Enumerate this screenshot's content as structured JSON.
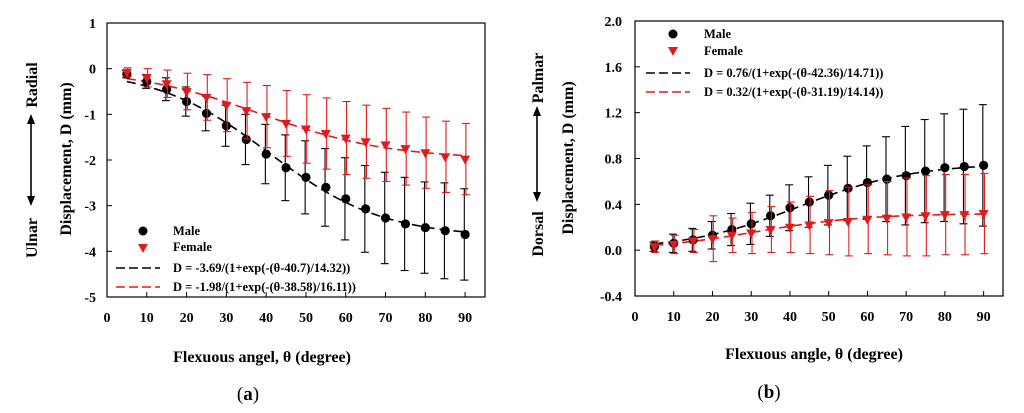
{
  "chart_data": [
    {
      "type": "scatter",
      "panel_label": "a",
      "caption_open": "(",
      "caption_close": ")",
      "xlabel": "Flexuous angel, θ (degree)",
      "ylabel": "Displacement, D (mm)",
      "side_label_top": "Radial",
      "side_label_bottom": "Ulnar",
      "xlim": [
        0,
        95
      ],
      "ylim": [
        -5,
        1
      ],
      "xticks": [
        "0",
        "10",
        "20",
        "30",
        "40",
        "50",
        "60",
        "70",
        "80",
        "90"
      ],
      "yticks": [
        "-5",
        "-4",
        "-3",
        "-2",
        "-1",
        "0",
        "1"
      ],
      "x": [
        5,
        10,
        15,
        20,
        25,
        30,
        35,
        40,
        45,
        50,
        55,
        60,
        65,
        70,
        75,
        80,
        85,
        90
      ],
      "series": [
        {
          "name": "Male",
          "marker": "circle",
          "color": "#000000",
          "values": [
            -0.12,
            -0.28,
            -0.45,
            -0.72,
            -0.98,
            -1.25,
            -1.55,
            -1.87,
            -2.17,
            -2.38,
            -2.6,
            -2.85,
            -3.07,
            -3.27,
            -3.4,
            -3.48,
            -3.55,
            -3.63
          ],
          "errors": [
            0.08,
            0.15,
            0.25,
            0.32,
            0.38,
            0.45,
            0.55,
            0.65,
            0.72,
            0.8,
            0.85,
            0.9,
            0.95,
            1.0,
            1.02,
            1.0,
            1.05,
            1.0
          ]
        },
        {
          "name": "Female",
          "marker": "triangle-down",
          "color": "#e31a1c",
          "values": [
            -0.08,
            -0.2,
            -0.33,
            -0.5,
            -0.63,
            -0.8,
            -0.92,
            -1.05,
            -1.2,
            -1.32,
            -1.42,
            -1.52,
            -1.6,
            -1.67,
            -1.75,
            -1.84,
            -1.93,
            -1.98
          ],
          "errors": [
            0.1,
            0.2,
            0.3,
            0.4,
            0.5,
            0.58,
            0.62,
            0.68,
            0.72,
            0.75,
            0.78,
            0.8,
            0.8,
            0.8,
            0.8,
            0.78,
            0.78,
            0.78
          ]
        }
      ],
      "fits": [
        {
          "label": "D = -3.69/(1+exp(-(θ-40.7)/14.32))",
          "color": "#000000",
          "A": -3.69,
          "x0": 40.7,
          "w": 14.32
        },
        {
          "label": "D = -1.98/(1+exp(-(θ-38.58)/16.11))",
          "color": "#e31a1c",
          "A": -1.98,
          "x0": 38.58,
          "w": 16.11
        }
      ],
      "legend_position": "bottom-left"
    },
    {
      "type": "scatter",
      "panel_label": "b",
      "caption_open": "(",
      "caption_close": ")",
      "xlabel": "Flexuous angle, θ (degree)",
      "ylabel": "Displacement, D (mm)",
      "side_label_top": "Palmar",
      "side_label_bottom": "Dorsal",
      "xlim": [
        0,
        95
      ],
      "ylim": [
        -0.4,
        2.0
      ],
      "xticks": [
        "0",
        "10",
        "20",
        "30",
        "40",
        "50",
        "60",
        "70",
        "80",
        "90"
      ],
      "yticks": [
        "-0.4",
        "0.0",
        "0.4",
        "0.8",
        "1.2",
        "1.6",
        "2.0"
      ],
      "x": [
        5,
        10,
        15,
        20,
        25,
        30,
        35,
        40,
        45,
        50,
        55,
        60,
        65,
        70,
        75,
        80,
        85,
        90
      ],
      "series": [
        {
          "name": "Male",
          "marker": "circle",
          "color": "#000000",
          "values": [
            0.03,
            0.06,
            0.09,
            0.13,
            0.18,
            0.23,
            0.3,
            0.37,
            0.42,
            0.48,
            0.54,
            0.59,
            0.62,
            0.65,
            0.69,
            0.72,
            0.73,
            0.74
          ],
          "errors": [
            0.04,
            0.08,
            0.1,
            0.12,
            0.14,
            0.18,
            0.18,
            0.2,
            0.22,
            0.26,
            0.28,
            0.32,
            0.37,
            0.43,
            0.45,
            0.47,
            0.5,
            0.53
          ]
        },
        {
          "name": "Female",
          "marker": "triangle-down",
          "color": "#e31a1c",
          "values": [
            0.03,
            0.05,
            0.08,
            0.1,
            0.13,
            0.15,
            0.18,
            0.2,
            0.22,
            0.24,
            0.25,
            0.27,
            0.28,
            0.29,
            0.3,
            0.31,
            0.31,
            0.32
          ],
          "errors": [
            0.05,
            0.08,
            0.1,
            0.2,
            0.15,
            0.18,
            0.2,
            0.22,
            0.25,
            0.28,
            0.3,
            0.3,
            0.32,
            0.34,
            0.35,
            0.35,
            0.35,
            0.35
          ]
        }
      ],
      "fits": [
        {
          "label": "D = 0.76/(1+exp(-(θ-42.36)/14.71))",
          "color": "#000000",
          "A": 0.76,
          "x0": 42.36,
          "w": 14.71
        },
        {
          "label": "D = 0.32/(1+exp(-(θ-31.19)/14.14))",
          "color": "#e31a1c",
          "A": 0.32,
          "x0": 31.19,
          "w": 14.14
        }
      ],
      "legend_position": "top-left"
    }
  ]
}
